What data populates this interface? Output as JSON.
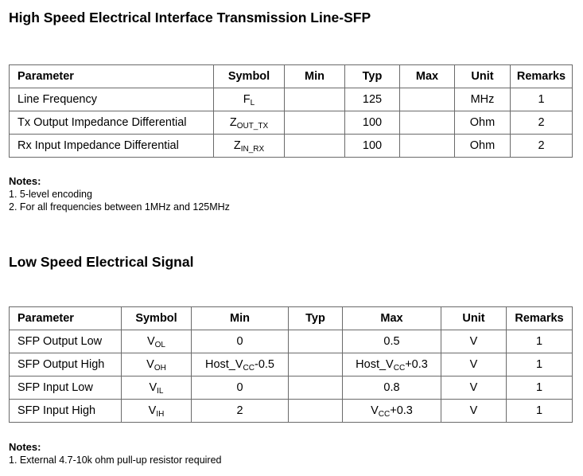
{
  "section1": {
    "title": "High Speed Electrical Interface Transmission Line-SFP",
    "headers": [
      "Parameter",
      "Symbol",
      "Min",
      "Typ",
      "Max",
      "Unit",
      "Remarks"
    ],
    "rows": [
      [
        {
          "t": "Line Frequency"
        },
        {
          "t": "F",
          "sub": "L"
        },
        {
          "t": ""
        },
        {
          "t": "125"
        },
        {
          "t": ""
        },
        {
          "t": "MHz"
        },
        {
          "t": "1"
        }
      ],
      [
        {
          "t": "Tx Output Impedance Differential"
        },
        {
          "t": "Z",
          "sub": "OUT_TX"
        },
        {
          "t": ""
        },
        {
          "t": "100"
        },
        {
          "t": ""
        },
        {
          "t": "Ohm"
        },
        {
          "t": "2"
        }
      ],
      [
        {
          "t": "Rx Input Impedance Differential"
        },
        {
          "t": "Z",
          "sub": "IN_RX"
        },
        {
          "t": ""
        },
        {
          "t": "100"
        },
        {
          "t": ""
        },
        {
          "t": "Ohm"
        },
        {
          "t": "2"
        }
      ]
    ],
    "notes_heading": "Notes:",
    "notes": [
      "1. 5-level encoding",
      "2. For all frequencies between 1MHz and 125MHz"
    ]
  },
  "section2": {
    "title": "Low Speed Electrical Signal",
    "headers": [
      "Parameter",
      "Symbol",
      "Min",
      "Typ",
      "Max",
      "Unit",
      "Remarks"
    ],
    "rows": [
      [
        {
          "t": "SFP Output Low"
        },
        {
          "t": "V",
          "sub": "OL"
        },
        {
          "t": "0"
        },
        {
          "t": ""
        },
        {
          "t": "0.5"
        },
        {
          "t": "V"
        },
        {
          "t": "1"
        }
      ],
      [
        {
          "t": "SFP Output High"
        },
        {
          "t": "V",
          "sub": "OH"
        },
        {
          "t": "Host_V",
          "sub": "CC",
          "post": "-0.5"
        },
        {
          "t": ""
        },
        {
          "t": "Host_V",
          "sub": "CC",
          "post": "+0.3"
        },
        {
          "t": "V"
        },
        {
          "t": "1"
        }
      ],
      [
        {
          "t": "SFP Input Low"
        },
        {
          "t": "V",
          "sub": "IL"
        },
        {
          "t": "0"
        },
        {
          "t": ""
        },
        {
          "t": "0.8"
        },
        {
          "t": "V"
        },
        {
          "t": "1"
        }
      ],
      [
        {
          "t": "SFP Input High"
        },
        {
          "t": "V",
          "sub": "IH"
        },
        {
          "t": "2"
        },
        {
          "t": ""
        },
        {
          "t": "V",
          "sub": "CC",
          "post": "+0.3"
        },
        {
          "t": "V"
        },
        {
          "t": "1"
        }
      ]
    ],
    "notes_heading": "Notes:",
    "notes": [
      "1. External 4.7-10k ohm pull-up resistor required"
    ]
  }
}
